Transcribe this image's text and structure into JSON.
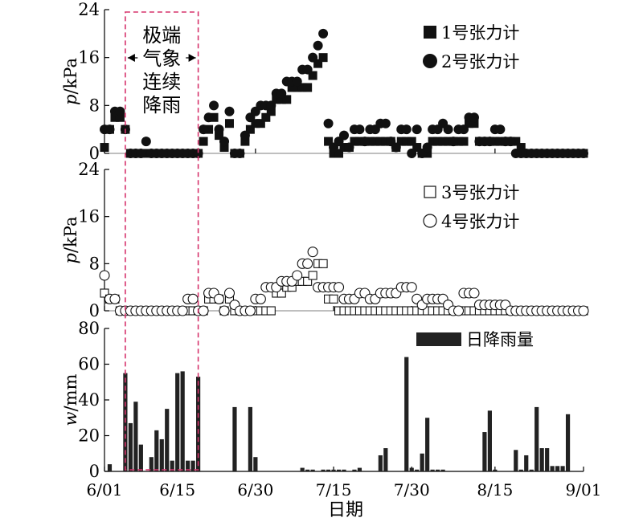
{
  "chart_data": {
    "type": "scatter",
    "xlabel": "日期",
    "x_ticks": [
      "6/01",
      "6/15",
      "6/30",
      "7/15",
      "7/30",
      "8/15",
      "9/01"
    ],
    "x_tick_day_index": [
      0,
      14,
      29,
      44,
      59,
      75,
      92
    ],
    "annotation": {
      "lines": [
        "极端",
        "气象",
        "连续",
        "降雨"
      ],
      "start_day": 4,
      "end_day": 18
    },
    "panels": [
      {
        "id": "upper",
        "ylabel_italic": "p",
        "ylabel_unit": "/kPa",
        "ylim": [
          0,
          24
        ],
        "yticks": [
          0,
          8,
          16,
          24
        ],
        "series": [
          {
            "name": "1号张力计",
            "marker": "square-filled",
            "x": [
              0,
              1,
              2,
              3,
              4,
              5,
              6,
              7,
              8,
              9,
              10,
              11,
              12,
              13,
              14,
              15,
              16,
              17,
              18,
              19,
              20,
              21,
              22,
              23,
              24,
              25,
              26,
              27,
              28,
              29,
              30,
              31,
              32,
              33,
              34,
              35,
              36,
              37,
              38,
              39,
              40,
              41,
              42,
              43,
              44,
              45,
              46,
              47,
              48,
              49,
              50,
              51,
              52,
              53,
              54,
              55,
              56,
              57,
              58,
              59,
              60,
              61,
              62,
              63,
              64,
              65,
              66,
              67,
              68,
              69,
              70,
              71,
              72,
              73,
              74,
              75,
              76,
              77,
              78,
              79,
              80,
              81,
              82,
              83,
              84,
              85,
              86,
              87,
              88,
              89,
              90,
              91,
              92
            ],
            "y": [
              1,
              4,
              6,
              6,
              4,
              0,
              0,
              0,
              0,
              0,
              0,
              0,
              0,
              0,
              0,
              0,
              0,
              0,
              0,
              2,
              4,
              6,
              3,
              1,
              5,
              0,
              0,
              2,
              4,
              5,
              5,
              6,
              7,
              9,
              9,
              9,
              11,
              11,
              11,
              11,
              13,
              15,
              16,
              2,
              0,
              0,
              1,
              1,
              2,
              2,
              2,
              2,
              2,
              2,
              2,
              2,
              1,
              2,
              2,
              2,
              1,
              0,
              0,
              2,
              2,
              2,
              2,
              2,
              2,
              2,
              5,
              5,
              2,
              2,
              2,
              2,
              2,
              2,
              2,
              2,
              1,
              0,
              0,
              0,
              0,
              0,
              0,
              0,
              0,
              0,
              0,
              0,
              0
            ]
          },
          {
            "name": "2号张力计",
            "marker": "circle-filled",
            "x": [
              0,
              1,
              2,
              3,
              4,
              5,
              6,
              7,
              8,
              9,
              10,
              11,
              12,
              13,
              14,
              15,
              16,
              17,
              18,
              19,
              20,
              21,
              22,
              23,
              24,
              25,
              26,
              27,
              28,
              29,
              30,
              31,
              32,
              33,
              34,
              35,
              36,
              37,
              38,
              39,
              40,
              41,
              42,
              43,
              44,
              45,
              46,
              47,
              48,
              49,
              50,
              51,
              52,
              53,
              54,
              55,
              56,
              57,
              58,
              59,
              60,
              61,
              62,
              63,
              64,
              65,
              66,
              67,
              68,
              69,
              70,
              71,
              72,
              73,
              74,
              75,
              76,
              77,
              78,
              79,
              80,
              81,
              82,
              83,
              84,
              85,
              86,
              87,
              88,
              89,
              90,
              91,
              92
            ],
            "y": [
              4,
              4,
              7,
              7,
              4,
              0,
              0,
              0,
              2,
              0,
              0,
              0,
              0,
              0,
              0,
              0,
              0,
              0,
              0,
              4,
              6,
              8,
              4,
              2,
              7,
              0,
              0,
              3,
              6,
              7,
              8,
              8,
              8,
              10,
              10,
              12,
              12,
              12,
              14,
              14,
              16,
              18,
              20,
              5,
              1,
              2,
              3,
              1,
              4,
              4,
              2,
              4,
              4,
              5,
              5,
              2,
              1,
              4,
              4,
              0,
              4,
              0,
              1,
              4,
              4,
              5,
              4,
              2,
              4,
              4,
              6,
              6,
              2,
              2,
              2,
              4,
              4,
              2,
              2,
              0,
              0,
              0,
              0,
              0,
              0,
              0,
              0,
              0,
              0,
              0,
              0,
              0,
              0
            ]
          }
        ],
        "legend": [
          "1号张力计",
          "2号张力计"
        ]
      },
      {
        "id": "middle",
        "ylabel_italic": "p",
        "ylabel_unit": "/kPa",
        "ylim": [
          0,
          24
        ],
        "yticks": [
          0,
          8,
          16,
          24
        ],
        "series": [
          {
            "name": "3号张力计",
            "marker": "square-open",
            "x": [
              0,
              1,
              2,
              3,
              4,
              5,
              6,
              7,
              8,
              9,
              10,
              11,
              12,
              13,
              14,
              15,
              16,
              17,
              18,
              19,
              20,
              21,
              22,
              23,
              24,
              25,
              26,
              27,
              28,
              29,
              30,
              31,
              32,
              33,
              34,
              35,
              36,
              37,
              38,
              39,
              40,
              41,
              42,
              43,
              44,
              45,
              46,
              47,
              48,
              49,
              50,
              51,
              52,
              53,
              54,
              55,
              56,
              57,
              58,
              59,
              60,
              61,
              62,
              63,
              64,
              65,
              66,
              67,
              68,
              69,
              70,
              71,
              72,
              73,
              74,
              75,
              76,
              77,
              78,
              79,
              80,
              81,
              82,
              83,
              84,
              85,
              86,
              87,
              88,
              89,
              90,
              91,
              92
            ],
            "y": [
              3,
              2,
              2,
              0,
              0,
              0,
              0,
              0,
              0,
              0,
              0,
              0,
              0,
              0,
              0,
              0,
              0,
              0,
              0,
              0,
              2,
              2,
              2,
              0,
              2,
              0,
              0,
              0,
              0,
              0,
              0,
              0,
              0,
              3,
              3,
              4,
              4,
              5,
              5,
              5,
              6,
              8,
              8,
              2,
              2,
              0,
              0,
              0,
              0,
              0,
              0,
              0,
              0,
              0,
              0,
              0,
              0,
              0,
              0,
              0,
              0,
              0,
              0,
              0,
              0,
              0,
              0,
              0,
              0,
              0,
              0,
              0,
              0,
              0,
              0,
              0,
              0,
              0,
              0,
              0,
              0,
              0,
              0,
              0,
              0,
              0,
              0,
              0,
              0,
              0,
              0,
              0,
              0
            ]
          },
          {
            "name": "4号张力计",
            "marker": "circle-open",
            "x": [
              0,
              1,
              2,
              3,
              4,
              5,
              6,
              7,
              8,
              9,
              10,
              11,
              12,
              13,
              14,
              15,
              16,
              17,
              18,
              19,
              20,
              21,
              22,
              23,
              24,
              25,
              26,
              27,
              28,
              29,
              30,
              31,
              32,
              33,
              34,
              35,
              36,
              37,
              38,
              39,
              40,
              41,
              42,
              43,
              44,
              45,
              46,
              47,
              48,
              49,
              50,
              51,
              52,
              53,
              54,
              55,
              56,
              57,
              58,
              59,
              60,
              61,
              62,
              63,
              64,
              65,
              66,
              67,
              68,
              69,
              70,
              71,
              72,
              73,
              74,
              75,
              76,
              77,
              78,
              79,
              80,
              81,
              82,
              83,
              84,
              85,
              86,
              87,
              88,
              89,
              90,
              91,
              92
            ],
            "y": [
              6,
              2,
              2,
              0,
              0,
              0,
              0,
              0,
              0,
              0,
              0,
              0,
              0,
              0,
              0,
              0,
              2,
              2,
              0,
              0,
              3,
              3,
              2,
              0,
              3,
              1,
              0,
              0,
              0,
              2,
              2,
              4,
              4,
              4,
              5,
              5,
              5,
              6,
              8,
              8,
              10,
              4,
              4,
              4,
              4,
              4,
              2,
              2,
              2,
              3,
              3,
              2,
              2,
              3,
              3,
              3,
              3,
              4,
              4,
              4,
              2,
              1,
              2,
              2,
              2,
              2,
              1,
              0,
              0,
              3,
              3,
              3,
              1,
              1,
              1,
              1,
              1,
              1,
              0,
              0,
              0,
              0,
              0,
              0,
              0,
              0,
              0,
              0,
              0,
              0,
              0,
              0,
              0
            ]
          }
        ],
        "legend": [
          "3号张力计",
          "4号张力计"
        ]
      },
      {
        "id": "lower",
        "type": "bar",
        "ylabel_italic": "w",
        "ylabel_unit": "/mm",
        "ylim": [
          0,
          80
        ],
        "yticks": [
          0,
          20,
          40,
          60,
          80
        ],
        "series": [
          {
            "name": "日降雨量",
            "x": [
              1,
              4,
              5,
              6,
              7,
              8,
              9,
              10,
              11,
              12,
              13,
              14,
              15,
              16,
              17,
              18,
              25,
              28,
              29,
              38,
              39,
              40,
              42,
              43,
              44,
              45,
              46,
              48,
              49,
              53,
              54,
              58,
              59,
              60,
              61,
              62,
              63,
              64,
              65,
              73,
              74,
              75,
              79,
              80,
              81,
              82,
              83,
              84,
              85,
              86,
              87,
              88,
              89
            ],
            "y": [
              4,
              55,
              27,
              39,
              15,
              0,
              8,
              23,
              18,
              35,
              6,
              55,
              56,
              6,
              6,
              53,
              36,
              36,
              8,
              2,
              1,
              1,
              1,
              1,
              1,
              1,
              1,
              1,
              2,
              9,
              13,
              64,
              2,
              1,
              10,
              30,
              1,
              1,
              1,
              22,
              34,
              1,
              12,
              1,
              9,
              1,
              36,
              13,
              13,
              3,
              3,
              3,
              32
            ]
          }
        ],
        "legend": [
          "日降雨量"
        ]
      }
    ]
  }
}
